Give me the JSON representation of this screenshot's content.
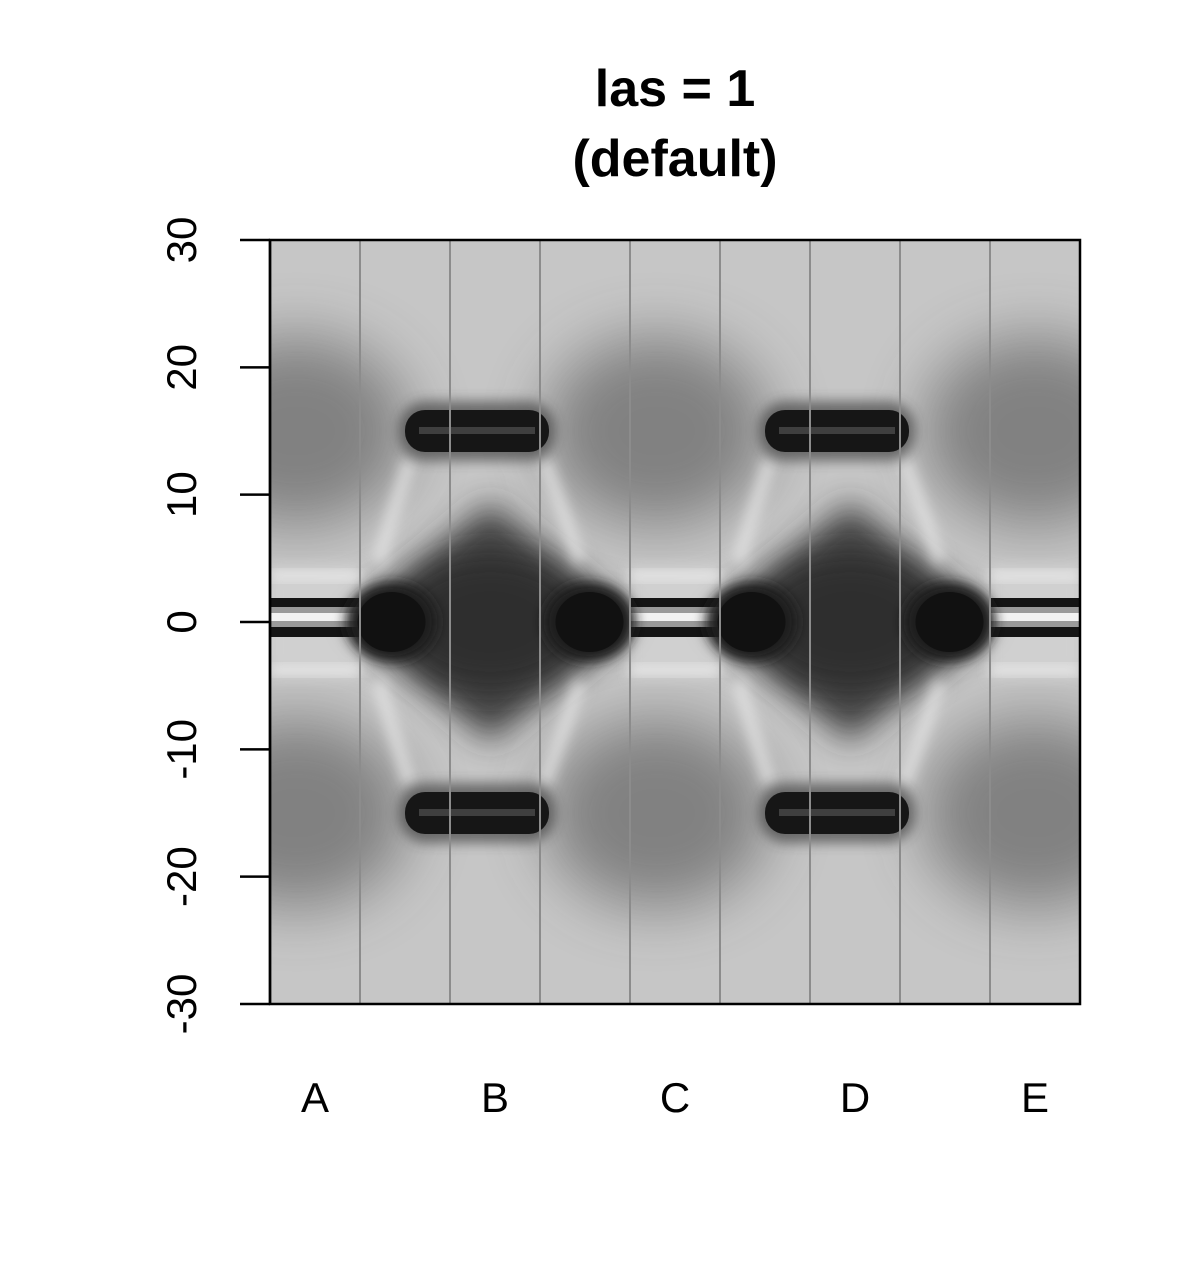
{
  "chart_data": {
    "type": "heatmap",
    "title_lines": [
      "las = 1",
      "(default)"
    ],
    "xlabel": "",
    "ylabel": "",
    "x_categories": [
      "A",
      "B",
      "C",
      "D",
      "E"
    ],
    "lane_count": 9,
    "y_ticks": [
      30,
      20,
      10,
      0,
      -10,
      -20,
      -30
    ],
    "ylim": [
      -30,
      30
    ],
    "y_tick_orientation": "vertical",
    "grid": false,
    "colormap": "grayscale",
    "colors": {
      "background": "#ffffff",
      "frame": "#000000",
      "lane_divider": "#8c8c8c",
      "base": "#c6c6c6",
      "dark": "#141414",
      "light": "#f2f2f2"
    },
    "features": [
      {
        "kind": "dark-bar",
        "x_from": 1.5,
        "x_to": 3.1,
        "y": 15
      },
      {
        "kind": "dark-bar",
        "x_from": 5.5,
        "x_to": 7.1,
        "y": 15
      },
      {
        "kind": "dark-bar",
        "x_from": 1.5,
        "x_to": 3.1,
        "y": -15
      },
      {
        "kind": "dark-bar",
        "x_from": 5.5,
        "x_to": 7.1,
        "y": -15
      },
      {
        "kind": "striped-band",
        "x_from": 0.0,
        "x_to": 1.0,
        "y": 0
      },
      {
        "kind": "striped-band",
        "x_from": 4.0,
        "x_to": 5.0,
        "y": 0
      },
      {
        "kind": "striped-band",
        "x_from": 8.0,
        "x_to": 9.0,
        "y": 0
      },
      {
        "kind": "dark-blob",
        "x": 1.35,
        "y": 0
      },
      {
        "kind": "dark-blob",
        "x": 3.55,
        "y": 0
      },
      {
        "kind": "dark-blob",
        "x": 5.35,
        "y": 0
      },
      {
        "kind": "dark-blob",
        "x": 7.55,
        "y": 0
      },
      {
        "kind": "dark-diamond",
        "x": 2.45,
        "y": 0
      },
      {
        "kind": "dark-diamond",
        "x": 6.45,
        "y": 0
      },
      {
        "kind": "diffuse-shadow",
        "x": 0.3,
        "y": 15
      },
      {
        "kind": "diffuse-shadow",
        "x": 0.3,
        "y": -15
      },
      {
        "kind": "diffuse-shadow",
        "x": 4.3,
        "y": 15
      },
      {
        "kind": "diffuse-shadow",
        "x": 4.3,
        "y": -15
      },
      {
        "kind": "diffuse-shadow",
        "x": 8.5,
        "y": 15
      },
      {
        "kind": "diffuse-shadow",
        "x": 8.5,
        "y": -15
      }
    ]
  }
}
